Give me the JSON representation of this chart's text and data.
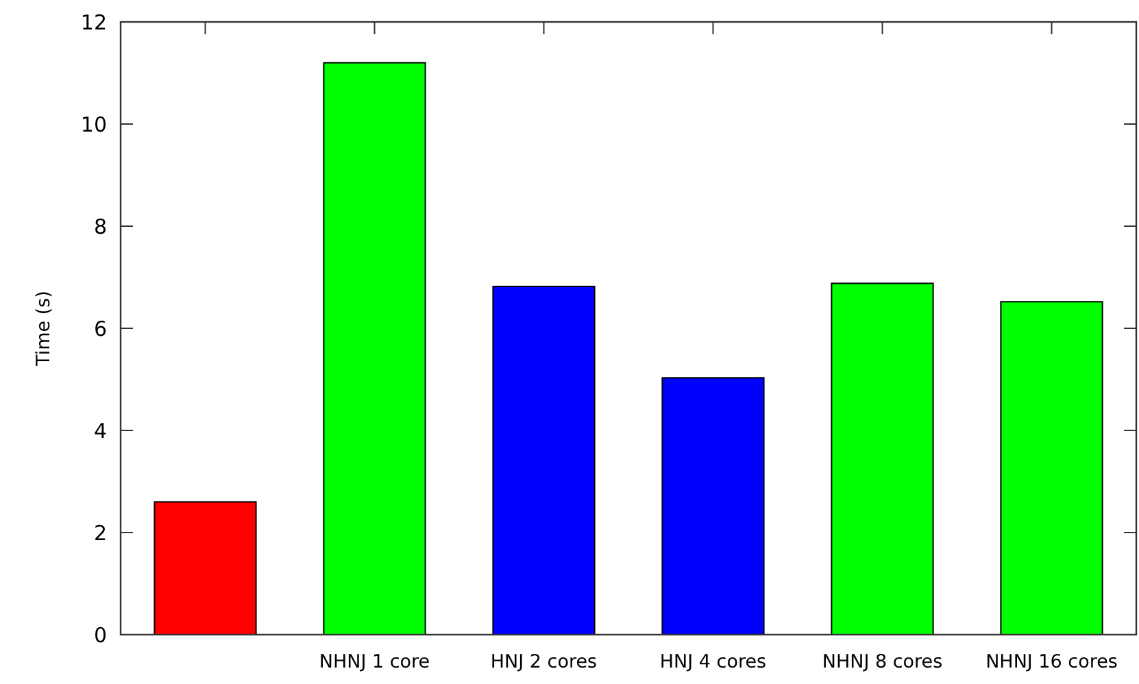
{
  "chart_data": {
    "type": "bar",
    "ylabel": "Time (s)",
    "categories": [
      null,
      "NHNJ 1 core",
      "HNJ 2 cores",
      "HNJ 4 cores",
      "NHNJ 8 cores",
      "NHNJ 16 cores"
    ],
    "values": [
      2.6,
      11.2,
      6.82,
      5.03,
      6.88,
      6.52
    ],
    "colors": [
      "#ff0000",
      "#00ff00",
      "#0000ff",
      "#0000ff",
      "#00ff00",
      "#00ff00"
    ],
    "ylim": [
      0,
      12
    ],
    "yticks": [
      0,
      2,
      4,
      6,
      8,
      10,
      12
    ],
    "grid": false
  }
}
